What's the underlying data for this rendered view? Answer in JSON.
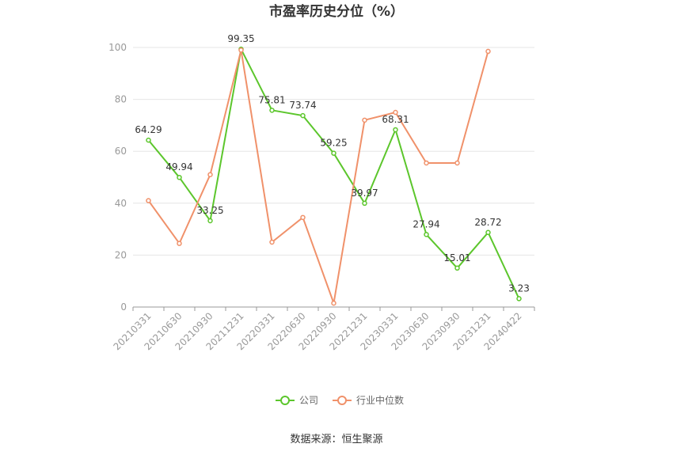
{
  "chart_data": {
    "type": "line",
    "title": "市盈率历史分位（%）",
    "categories": [
      "20210331",
      "20210630",
      "20210930",
      "20211231",
      "20220331",
      "20220630",
      "20220930",
      "20221231",
      "20230331",
      "20230630",
      "20230930",
      "20231231",
      "20240422"
    ],
    "ylim": [
      0,
      100
    ],
    "yticks": [
      0,
      20,
      40,
      60,
      80,
      100
    ],
    "grid": true,
    "legend_position": "bottom",
    "series": [
      {
        "name": "公司",
        "color": "#5cc62c",
        "values": [
          64.29,
          49.94,
          33.25,
          99.35,
          75.81,
          73.74,
          59.25,
          39.97,
          68.31,
          27.94,
          15.01,
          28.72,
          3.23
        ],
        "labels": [
          "64.29",
          "49.94",
          "33.25",
          "99.35",
          "75.81",
          "73.74",
          "59.25",
          "39.97",
          "68.31",
          "27.94",
          "15.01",
          "28.72",
          "3.23"
        ]
      },
      {
        "name": "行业中位数",
        "color": "#f0916a",
        "values": [
          41,
          24.5,
          51,
          99,
          25,
          34.5,
          1.5,
          72,
          75,
          55.5,
          55.5,
          98.5,
          null
        ]
      }
    ]
  },
  "source": "数据来源：恒生聚源"
}
